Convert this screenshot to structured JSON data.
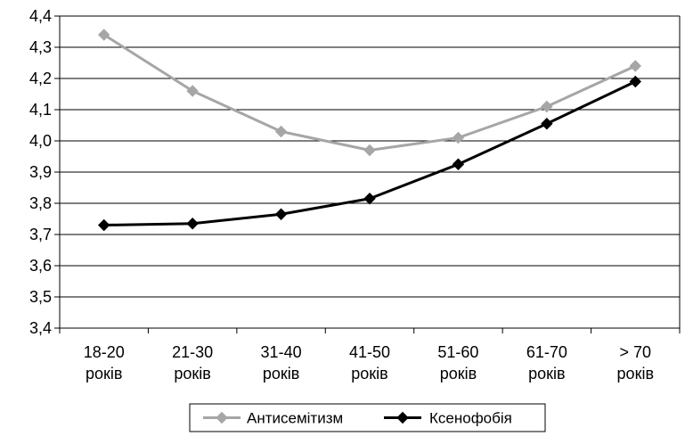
{
  "chart_data": {
    "type": "line",
    "title": "",
    "xlabel": "",
    "ylabel": "",
    "categories": [
      [
        "18-20",
        "років"
      ],
      [
        "21-30",
        "років"
      ],
      [
        "31-40",
        "років"
      ],
      [
        "41-50",
        "років"
      ],
      [
        "51-60",
        "років"
      ],
      [
        "61-70",
        "років"
      ],
      [
        "> 70",
        "років"
      ]
    ],
    "y_ticks": [
      "3,4",
      "3,5",
      "3,6",
      "3,7",
      "3,8",
      "3,9",
      "4,0",
      "4,1",
      "4,2",
      "4,3",
      "4,4"
    ],
    "ylim": [
      3.4,
      4.4
    ],
    "grid": "horizontal",
    "legend_position": "bottom",
    "series": [
      {
        "name": "Антисемітизм",
        "color": "#a6a6a6",
        "marker": "diamond",
        "values": [
          4.34,
          4.16,
          4.03,
          3.97,
          4.01,
          4.11,
          4.24
        ]
      },
      {
        "name": "Ксенофобія",
        "color": "#000000",
        "marker": "diamond",
        "values": [
          3.73,
          3.735,
          3.765,
          3.815,
          3.925,
          4.055,
          4.19
        ]
      }
    ]
  }
}
